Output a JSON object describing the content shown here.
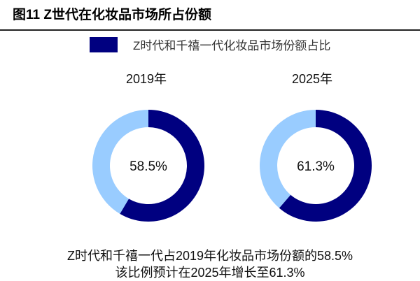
{
  "title": "图11  Z世代在化妆品市场所占份额",
  "colors": {
    "share": "#000080",
    "rest": "#99ccff"
  },
  "chart_data": {
    "type": "pie",
    "legend": [
      "Z时代和千禧一代化妆品市场份额占比"
    ],
    "legend_position": "top",
    "charts": [
      {
        "title": "2019年",
        "value": 58.5,
        "label": "58.5%"
      },
      {
        "title": "2025年",
        "value": 61.3,
        "label": "61.3%"
      }
    ]
  },
  "notes": [
    "Z时代和千禧一代占2019年化妆品市场份额的58.5%",
    "该比例预计在2025年增长至61.3%"
  ]
}
